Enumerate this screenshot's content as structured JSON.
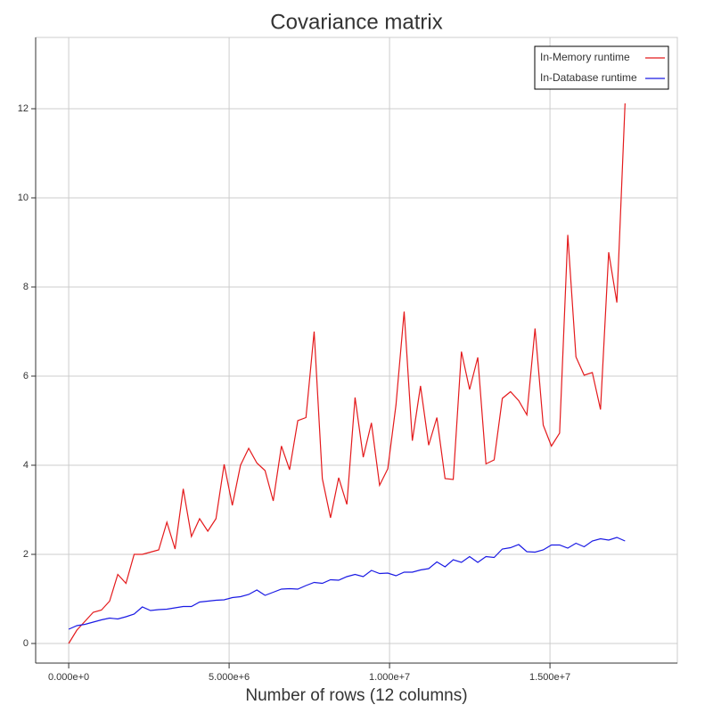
{
  "chart_data": {
    "type": "line",
    "title": "Covariance matrix",
    "xlabel": "Number of rows (12 columns)",
    "x": [
      0,
      255000,
      510000,
      765000,
      1020000,
      1275000,
      1530000,
      1785000,
      2040000,
      2295000,
      2550000,
      2805000,
      3060000,
      3315000,
      3570000,
      3825000,
      4080000,
      4335000,
      4590000,
      4845000,
      5100000,
      5355000,
      5610000,
      5865000,
      6120000,
      6375000,
      6630000,
      6885000,
      7140000,
      7395000,
      7650000,
      7905000,
      8160000,
      8415000,
      8670000,
      8925000,
      9180000,
      9435000,
      9690000,
      9945000,
      10200000,
      10455000,
      10710000,
      10965000,
      11220000,
      11475000,
      11730000,
      11985000,
      12240000,
      12495000,
      12750000,
      13005000,
      13260000,
      13515000,
      13770000,
      14025000,
      14280000,
      14535000,
      14790000,
      15045000,
      15300000,
      15555000,
      15810000,
      16065000,
      16320000,
      16575000,
      16830000,
      17085000,
      17340000
    ],
    "series": [
      {
        "name": "In-Memory runtime",
        "color": "#e41a1c",
        "values": [
          0,
          0.3,
          0.5,
          0.7,
          0.75,
          0.95,
          1.55,
          1.35,
          2.0,
          2.0,
          2.05,
          2.1,
          2.72,
          2.12,
          3.47,
          2.4,
          2.8,
          2.52,
          2.8,
          4.02,
          3.1,
          4.0,
          4.38,
          4.05,
          3.88,
          3.2,
          4.43,
          3.9,
          5.0,
          5.07,
          7.0,
          3.7,
          2.82,
          3.72,
          3.12,
          5.52,
          4.18,
          4.95,
          3.55,
          3.92,
          5.35,
          7.45,
          4.55,
          5.78,
          4.45,
          5.07,
          3.7,
          3.68,
          6.55,
          5.7,
          6.42,
          4.03,
          4.12,
          5.5,
          5.65,
          5.45,
          5.13,
          7.07,
          4.9,
          4.43,
          4.72,
          9.17,
          6.43,
          6.02,
          6.08,
          5.25,
          8.78,
          7.65,
          12.12
        ]
      },
      {
        "name": "In-Database runtime",
        "color": "#1a1ae4",
        "values": [
          0.32,
          0.4,
          0.43,
          0.48,
          0.53,
          0.57,
          0.55,
          0.6,
          0.66,
          0.82,
          0.74,
          0.76,
          0.77,
          0.8,
          0.83,
          0.83,
          0.93,
          0.95,
          0.97,
          0.98,
          1.03,
          1.05,
          1.1,
          1.2,
          1.08,
          1.15,
          1.22,
          1.23,
          1.22,
          1.3,
          1.37,
          1.35,
          1.43,
          1.42,
          1.5,
          1.55,
          1.5,
          1.64,
          1.57,
          1.58,
          1.52,
          1.6,
          1.6,
          1.65,
          1.68,
          1.83,
          1.72,
          1.88,
          1.82,
          1.95,
          1.82,
          1.95,
          1.93,
          2.12,
          2.15,
          2.22,
          2.06,
          2.05,
          2.1,
          2.21,
          2.21,
          2.14,
          2.25,
          2.17,
          2.3,
          2.35,
          2.32,
          2.38,
          2.3
        ]
      }
    ],
    "xlim": [
      -1030000,
      18970000
    ],
    "xticks": [
      {
        "value": 0,
        "label": "0.000e+0"
      },
      {
        "value": 5000000,
        "label": "5.000e+6"
      },
      {
        "value": 10000000,
        "label": "1.000e+7"
      },
      {
        "value": 15000000,
        "label": "1.500e+7"
      }
    ],
    "ylim": [
      -0.44,
      13.6
    ],
    "yticks": [
      0,
      2,
      4,
      6,
      8,
      10,
      12
    ],
    "grid": true,
    "legend": "upper right"
  }
}
